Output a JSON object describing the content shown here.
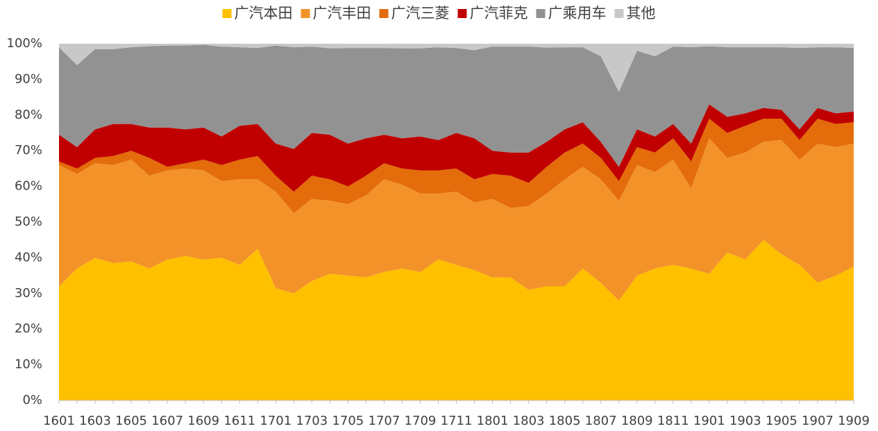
{
  "chart_data": {
    "type": "stacked_area",
    "categories": [
      "1601",
      null,
      "1603",
      null,
      "1605",
      null,
      "1607",
      null,
      "1609",
      null,
      "1611",
      null,
      "1701",
      null,
      "1703",
      null,
      "1705",
      null,
      "1707",
      null,
      "1709",
      null,
      "1711",
      null,
      "1801",
      null,
      "1803",
      null,
      "1805",
      null,
      "1807",
      null,
      "1809",
      null,
      "1811",
      null,
      "1901",
      null,
      "1903",
      null,
      "1905",
      null,
      "1907",
      null,
      "1909"
    ],
    "series": [
      {
        "name": "广汽本田",
        "color": "#ffc000",
        "values": [
          32,
          37,
          40,
          38.5,
          39,
          37,
          39.5,
          40.5,
          39.5,
          40,
          38,
          42.5,
          31.5,
          30,
          33.5,
          35.5,
          35,
          34.5,
          36,
          37,
          36,
          39.5,
          38,
          36.5,
          34.5,
          34.5,
          31,
          32,
          32,
          37,
          33,
          28,
          35,
          37,
          38,
          37,
          35.5,
          41.5,
          39.5,
          45,
          41,
          38,
          33,
          35,
          37.5
        ]
      },
      {
        "name": "广汽丰田",
        "color": "#f39229",
        "values": [
          34,
          26.5,
          26.5,
          27.5,
          28.5,
          26,
          25,
          24.5,
          25,
          21.5,
          24,
          19.5,
          27,
          22.5,
          23,
          20.5,
          20,
          23,
          26,
          23.5,
          22,
          18.5,
          20.5,
          19,
          22,
          19.5,
          23.5,
          26,
          30,
          28.5,
          29,
          28,
          31,
          27,
          29.5,
          22.5,
          38,
          26.5,
          30,
          27.5,
          32,
          29.5,
          39,
          36,
          34.5
        ]
      },
      {
        "name": "广汽三菱",
        "color": "#e46c0a",
        "values": [
          1,
          1.5,
          1.5,
          2.5,
          2.5,
          5,
          1,
          1.5,
          3,
          4.5,
          5.5,
          6.5,
          4.5,
          6,
          6.5,
          6,
          5,
          5.5,
          4.5,
          4.5,
          6.5,
          6.5,
          6.5,
          6.5,
          7,
          9,
          6.5,
          7.5,
          7.5,
          6.5,
          6,
          5.5,
          5,
          5.5,
          6,
          7.5,
          5.5,
          7,
          7.5,
          6.5,
          6,
          5.5,
          7,
          6.5,
          6
        ]
      },
      {
        "name": "广汽菲克",
        "color": "#c00000",
        "values": [
          7.5,
          6,
          8,
          9,
          7.5,
          8.5,
          11,
          9.5,
          9,
          8,
          9.5,
          9,
          9,
          12,
          12,
          12.5,
          12,
          10.5,
          8,
          8.5,
          9.5,
          8.5,
          10,
          11.5,
          6.5,
          6.5,
          8.5,
          7,
          6.5,
          6,
          4.5,
          4,
          5,
          4.5,
          4,
          5,
          4,
          4.5,
          3.5,
          3,
          2.5,
          3,
          3,
          3,
          3
        ]
      },
      {
        "name": "广乘用车",
        "color": "#929292",
        "values": [
          24.5,
          23,
          22.5,
          21,
          21.5,
          22.8,
          23,
          23.5,
          23.2,
          25.2,
          22,
          21.3,
          27.5,
          28.5,
          24.2,
          24.2,
          26.8,
          25.3,
          24.3,
          25.2,
          24.7,
          26,
          23.8,
          24.7,
          29.2,
          29.7,
          29.7,
          26.4,
          23,
          21,
          24,
          21,
          22,
          22.5,
          21.7,
          27,
          16.3,
          19.5,
          18.5,
          17,
          17.5,
          22.8,
          17,
          18.5,
          17.8
        ]
      },
      {
        "name": "其他",
        "color": "#c8c8c8",
        "values": [
          1,
          6,
          1.5,
          1.5,
          1,
          0.7,
          0.5,
          0.5,
          0.3,
          0.8,
          1,
          1.2,
          0.5,
          1,
          0.8,
          1.3,
          1.2,
          1.2,
          1.2,
          1.3,
          1.3,
          1,
          1.2,
          1.8,
          0.8,
          0.8,
          0.8,
          1.1,
          1,
          1,
          3.5,
          13.5,
          2,
          3.5,
          0.8,
          1,
          0.7,
          1,
          1,
          1,
          1,
          1.2,
          1,
          1,
          1.2
        ]
      }
    ],
    "ylim": [
      0,
      100
    ],
    "yticks": [
      {
        "value": 0,
        "label": "0%"
      },
      {
        "value": 10,
        "label": "10%"
      },
      {
        "value": 20,
        "label": "20%"
      },
      {
        "value": 30,
        "label": "30%"
      },
      {
        "value": 40,
        "label": "40%"
      },
      {
        "value": 50,
        "label": "50%"
      },
      {
        "value": 60,
        "label": "60%"
      },
      {
        "value": 70,
        "label": "70%"
      },
      {
        "value": 80,
        "label": "80%"
      },
      {
        "value": 90,
        "label": "90%"
      },
      {
        "value": 100,
        "label": "100%"
      }
    ],
    "legend": "top"
  }
}
